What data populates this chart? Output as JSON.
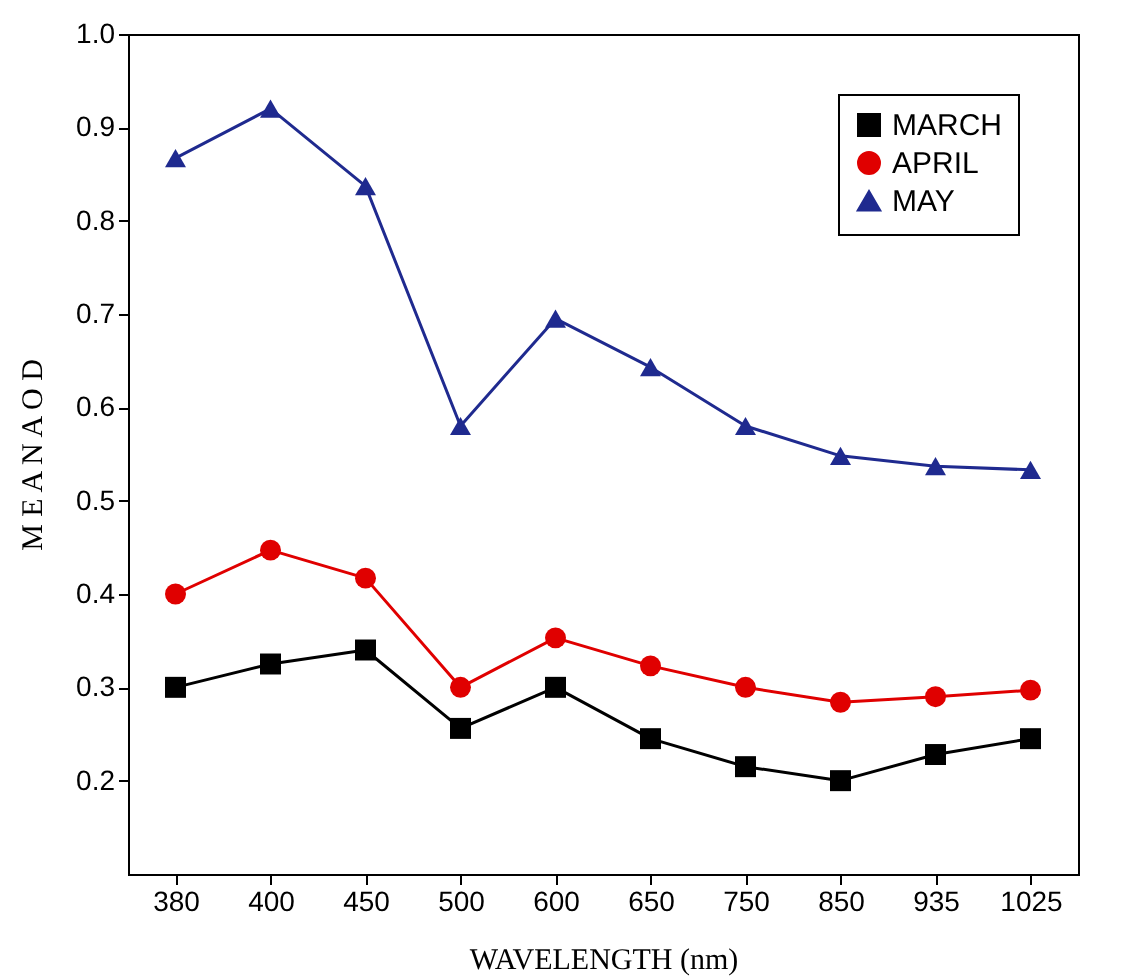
{
  "chart_data": {
    "type": "line",
    "xlabel": "WAVELENGTH (nm)",
    "ylabel": "M E A N  A O D",
    "categories": [
      "380",
      "400",
      "450",
      "500",
      "600",
      "650",
      "750",
      "850",
      "935",
      "1025"
    ],
    "series": [
      {
        "name": "MARCH",
        "color": "#000000",
        "marker": "square",
        "values": [
          0.3,
          0.325,
          0.34,
          0.256,
          0.3,
          0.245,
          0.215,
          0.2,
          0.228,
          0.245
        ]
      },
      {
        "name": "APRIL",
        "color": "#e00000",
        "marker": "circle",
        "values": [
          0.4,
          0.447,
          0.417,
          0.3,
          0.353,
          0.323,
          0.3,
          0.284,
          0.29,
          0.297
        ]
      },
      {
        "name": "MAY",
        "color": "#1f2a8f",
        "marker": "triangle",
        "values": [
          0.867,
          0.92,
          0.837,
          0.58,
          0.695,
          0.643,
          0.58,
          0.548,
          0.537,
          0.533
        ]
      }
    ],
    "ylim": [
      0.1,
      1.0
    ],
    "yticks": [
      0.2,
      0.3,
      0.4,
      0.5,
      0.6,
      0.7,
      0.8,
      0.9,
      {
        "value": 1.0,
        "label": "1.0"
      }
    ],
    "grid": false,
    "legend": "top right"
  }
}
